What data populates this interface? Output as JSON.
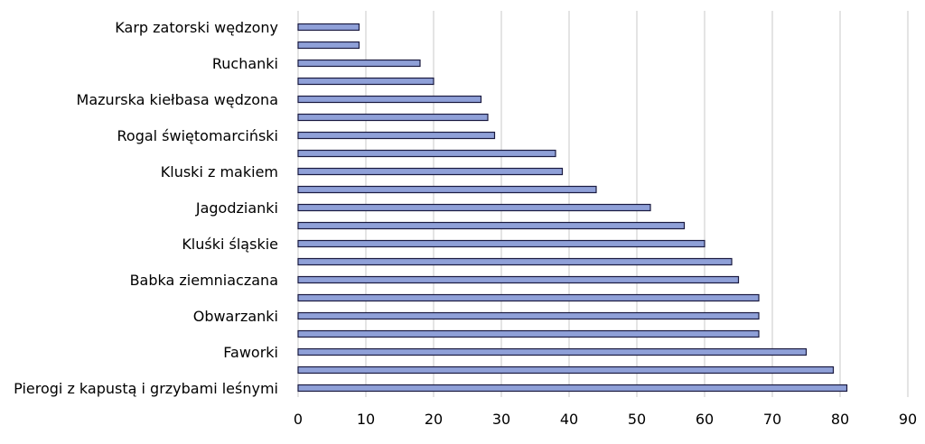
{
  "chart_data": {
    "type": "bar",
    "orientation": "horizontal",
    "categories": [
      "Karp zatorski wędzony",
      "",
      "Ruchanki",
      "",
      "Mazurska kiełbasa wędzona",
      "",
      "Rogal świętomarciński",
      "",
      "Kluski z makiem",
      "",
      "Jagodzianki",
      "",
      "Kluśki śląskie",
      "",
      "Babka ziemniaczana",
      "",
      "Obwarzanki",
      "",
      "Faworki",
      "",
      "Pierogi z kapustą i grzybami leśnymi"
    ],
    "values": [
      9,
      9,
      18,
      20,
      27,
      28,
      29,
      38,
      39,
      44,
      52,
      57,
      60,
      64,
      65,
      68,
      68,
      68,
      75,
      79,
      81
    ],
    "xlim": [
      0,
      90
    ],
    "xticks": [
      0,
      10,
      20,
      30,
      40,
      50,
      60,
      70,
      80,
      90
    ],
    "grid": "vertical",
    "colors": {
      "bar_fill": "#8fa0d8",
      "bar_edge": "#1a1a40",
      "grid": "#c8c8c8"
    }
  }
}
